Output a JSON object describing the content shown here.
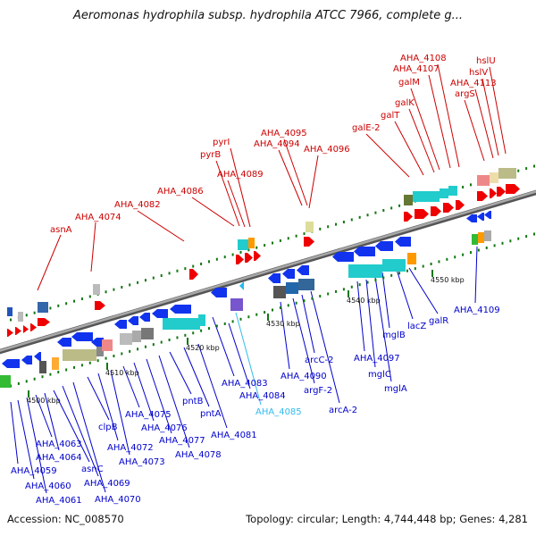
{
  "title": "Aeromonas hydrophila subsp. hydrophila ATCC 7966, complete g...",
  "footer": {
    "accession": "Accession: NC_008570",
    "summary": "Topology: circular; Length: 4,744,448 bp; Genes: 4,281"
  },
  "colors": {
    "upper_label": "#cc0000",
    "lower_label": "#0000cc",
    "highlight_label": "#33bbee",
    "forward_gene": "#ff0000",
    "reverse_gene": "#0000ee",
    "backbone": "#888888",
    "tick": "#117711"
  },
  "scale_labels": [
    "4500 kbp",
    "4510 kbp",
    "4520 kbp",
    "4530 kbp",
    "4540 kbp",
    "4550 kbp"
  ],
  "upper_labels": [
    "asnA",
    "AHA_4074",
    "AHA_4082",
    "AHA_4086",
    "AHA_4089",
    "pyrB",
    "pyrI",
    "AHA_4094",
    "AHA_4095",
    "AHA_4096",
    "galE-2",
    "galT",
    "galK",
    "galM",
    "AHA_4107",
    "AHA_4108",
    "argS",
    "AHA_4113",
    "hslV",
    "hslU"
  ],
  "lower_labels": [
    "AHA_4059",
    "AHA_4060",
    "AHA_4061",
    "AHA_4063",
    "AHA_4064",
    "asnC",
    "AHA_4069",
    "AHA_4070",
    "clpB",
    "AHA_4072",
    "AHA_4073",
    "AHA_4075",
    "AHA_4076",
    "AHA_4077",
    "AHA_4078",
    "pntB",
    "pntA",
    "AHA_4081",
    "AHA_4083",
    "AHA_4084",
    "AHA_4085",
    "AHA_4090",
    "argF-2",
    "arcC-2",
    "arcA-2",
    "AHA_4097",
    "mglC",
    "mglA",
    "mglB",
    "lacZ",
    "galR",
    "AHA_4109"
  ]
}
